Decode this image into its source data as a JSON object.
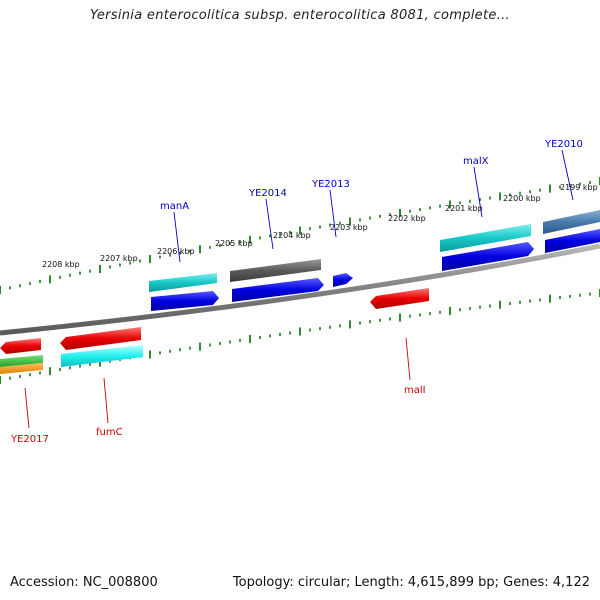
{
  "title": "Yersinia enterocolitica subsp. enterocolitica 8081, complete...",
  "footer": {
    "accession": "Accession: NC_008800",
    "summary": "Topology: circular; Length: 4,615,899 bp; Genes: 4,122"
  },
  "colors": {
    "backbone": "#8a8a8a",
    "ticks": "#1a7a1a",
    "forward_label": "#0000c8",
    "reverse_label": "#c80000"
  },
  "tick_labels": [
    {
      "text": "2208 kbp",
      "kbp": 2208
    },
    {
      "text": "2207 kbp",
      "kbp": 2207
    },
    {
      "text": "2206 kbp",
      "kbp": 2206
    },
    {
      "text": "2205 kbp",
      "kbp": 2205
    },
    {
      "text": "2204 kbp",
      "kbp": 2204
    },
    {
      "text": "2203 kbp",
      "kbp": 2203
    },
    {
      "text": "2202 kbp",
      "kbp": 2202
    },
    {
      "text": "2201 kbp",
      "kbp": 2201
    },
    {
      "text": "2200 kbp",
      "kbp": 2200
    },
    {
      "text": "2199 kbp",
      "kbp": 2199
    }
  ],
  "gene_labels": [
    {
      "text": "manA",
      "strand": "forward"
    },
    {
      "text": "YE2014",
      "strand": "forward"
    },
    {
      "text": "YE2013",
      "strand": "forward"
    },
    {
      "text": "malX",
      "strand": "forward"
    },
    {
      "text": "YE2010",
      "strand": "forward"
    },
    {
      "text": "YE2017",
      "strand": "reverse"
    },
    {
      "text": "fumC",
      "strand": "reverse"
    },
    {
      "text": "malI",
      "strand": "reverse"
    }
  ]
}
